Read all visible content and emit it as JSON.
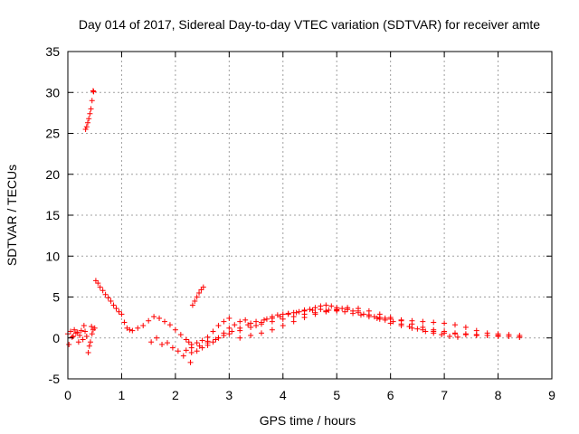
{
  "chart_data": {
    "type": "scatter",
    "title": "Day 014 of 2017, Sidereal Day-to-day VTEC variation (SDTVAR) for receiver amte",
    "xlabel": "GPS time / hours",
    "ylabel": "SDTVAR / TECUs",
    "xlim": [
      0,
      9
    ],
    "ylim": [
      -5,
      35
    ],
    "xticks": [
      "0",
      "1",
      "2",
      "3",
      "4",
      "5",
      "6",
      "7",
      "8",
      "9"
    ],
    "yticks": [
      "-5",
      "0",
      "5",
      "10",
      "15",
      "20",
      "25",
      "30",
      "35"
    ],
    "grid": true,
    "marker": "+",
    "color": "#ff0000",
    "series": [
      {
        "name": "SDTVAR",
        "x": [
          0.0,
          0.05,
          0.1,
          0.15,
          0.2,
          0.25,
          0.3,
          0.35,
          0.4,
          0.45,
          0.47,
          0.5,
          0.02,
          0.08,
          0.12,
          0.18,
          0.22,
          0.28,
          0.32,
          0.38,
          0.42,
          0.44,
          0.33,
          0.35,
          0.37,
          0.39,
          0.41,
          0.43,
          0.45,
          0.47,
          0.48,
          0.52,
          0.56,
          0.6,
          0.65,
          0.7,
          0.75,
          0.8,
          0.85,
          0.9,
          0.95,
          1.0,
          1.05,
          1.1,
          1.15,
          1.2,
          1.3,
          1.4,
          1.5,
          1.6,
          1.7,
          1.8,
          1.9,
          2.0,
          2.1,
          2.2,
          2.25,
          2.3,
          2.4,
          2.5,
          2.6,
          2.7,
          2.8,
          2.9,
          3.0,
          1.55,
          1.65,
          1.75,
          1.85,
          1.95,
          2.05,
          2.15,
          2.28,
          2.32,
          2.36,
          2.4,
          2.44,
          2.48,
          2.52,
          2.2,
          2.3,
          2.4,
          2.5,
          2.6,
          2.7,
          2.8,
          2.9,
          3.0,
          3.1,
          3.2,
          3.3,
          3.4,
          3.5,
          3.6,
          3.7,
          3.8,
          3.9,
          4.0,
          4.1,
          4.2,
          4.3,
          4.4,
          4.5,
          4.6,
          4.7,
          4.8,
          4.9,
          5.0,
          5.1,
          5.2,
          5.3,
          5.4,
          5.5,
          5.6,
          5.7,
          5.8,
          5.9,
          6.0,
          6.2,
          6.4,
          6.6,
          6.8,
          7.0,
          7.2,
          7.4,
          7.6,
          7.8,
          8.0,
          8.2,
          8.4,
          2.3,
          2.45,
          2.6,
          2.75,
          2.9,
          3.05,
          3.2,
          3.35,
          3.5,
          3.65,
          3.8,
          3.95,
          4.1,
          4.25,
          4.4,
          4.55,
          4.7,
          4.85,
          5.0,
          5.15,
          5.3,
          5.45,
          5.6,
          5.75,
          5.9,
          6.05,
          6.2,
          6.35,
          6.5,
          6.65,
          6.8,
          6.95,
          7.1,
          7.25,
          3.2,
          3.4,
          3.6,
          3.8,
          4.0,
          4.2,
          4.4,
          4.6,
          4.8,
          5.0,
          5.2,
          5.4,
          5.6,
          5.8,
          6.0,
          6.2,
          6.4,
          6.6,
          6.8,
          7.0,
          7.2,
          7.4,
          7.6,
          7.8,
          8.0,
          8.2,
          8.4,
          2.6,
          2.8,
          3.0,
          3.2,
          3.4,
          3.6,
          3.8,
          4.0,
          4.2,
          4.4,
          4.6,
          4.8,
          5.0,
          5.2,
          5.4,
          5.6,
          5.8,
          6.0,
          6.2,
          6.4,
          6.6,
          6.8,
          7.0,
          7.2,
          7.4,
          7.6,
          7.8,
          8.0,
          8.2,
          8.4
        ],
        "y": [
          0.5,
          0.8,
          0.2,
          0.6,
          -0.5,
          0.9,
          1.5,
          0.2,
          -1.0,
          0.5,
          1.0,
          1.2,
          -0.8,
          0.1,
          1.0,
          0.7,
          0.3,
          -0.2,
          0.8,
          -1.8,
          -0.5,
          1.4,
          25.5,
          25.8,
          26.3,
          26.8,
          27.4,
          28.0,
          29.0,
          30.2,
          30.1,
          7.0,
          6.7,
          6.2,
          5.8,
          5.3,
          4.9,
          4.5,
          4.0,
          3.6,
          3.2,
          2.9,
          1.9,
          1.2,
          1.0,
          0.9,
          1.2,
          1.5,
          2.1,
          2.6,
          2.4,
          2.0,
          1.6,
          1.0,
          0.4,
          -0.2,
          -0.5,
          -0.8,
          -0.6,
          -0.3,
          0.1,
          0.8,
          1.5,
          2.0,
          2.4,
          -0.5,
          0.0,
          -0.8,
          -0.6,
          -1.2,
          -1.6,
          -2.2,
          -3.0,
          4.0,
          4.5,
          5.0,
          5.5,
          5.9,
          6.2,
          -1.5,
          -1.8,
          -1.6,
          -1.2,
          -0.9,
          -0.5,
          0.0,
          0.6,
          1.2,
          1.6,
          2.0,
          2.2,
          1.8,
          1.5,
          1.9,
          2.3,
          2.6,
          2.8,
          2.9,
          3.0,
          3.1,
          3.2,
          3.4,
          3.5,
          3.7,
          3.9,
          4.0,
          3.9,
          3.7,
          3.6,
          3.5,
          3.3,
          3.1,
          2.9,
          2.8,
          2.6,
          2.5,
          2.4,
          2.3,
          2.2,
          2.1,
          2.0,
          1.9,
          1.8,
          1.6,
          1.3,
          0.9,
          0.6,
          0.5,
          0.4,
          0.3,
          -1.2,
          -1.0,
          -0.6,
          -0.2,
          0.3,
          0.8,
          1.2,
          1.6,
          2.0,
          2.2,
          2.4,
          2.6,
          2.9,
          3.1,
          3.3,
          3.4,
          3.5,
          3.4,
          3.3,
          3.2,
          3.0,
          2.8,
          2.6,
          2.4,
          2.2,
          2.0,
          1.7,
          1.4,
          1.1,
          0.8,
          0.6,
          0.4,
          0.2,
          0.1,
          0.0,
          0.3,
          0.6,
          1.0,
          1.5,
          2.0,
          2.5,
          2.9,
          3.2,
          3.4,
          3.5,
          3.3,
          2.8,
          2.3,
          1.8,
          1.5,
          1.2,
          1.0,
          0.8,
          0.6,
          0.5,
          0.4,
          0.3,
          0.3,
          0.2,
          0.2,
          0.1,
          -0.4,
          0.0,
          0.5,
          0.9,
          1.3,
          1.7,
          2.0,
          2.3,
          2.6,
          2.9,
          3.1,
          3.3,
          3.5,
          3.7,
          3.6,
          3.3,
          2.9,
          2.5,
          2.1,
          1.7,
          1.3,
          1.0,
          0.8,
          0.6,
          0.5,
          0.4,
          0.3,
          0.3,
          0.2,
          0.1
        ]
      }
    ]
  }
}
